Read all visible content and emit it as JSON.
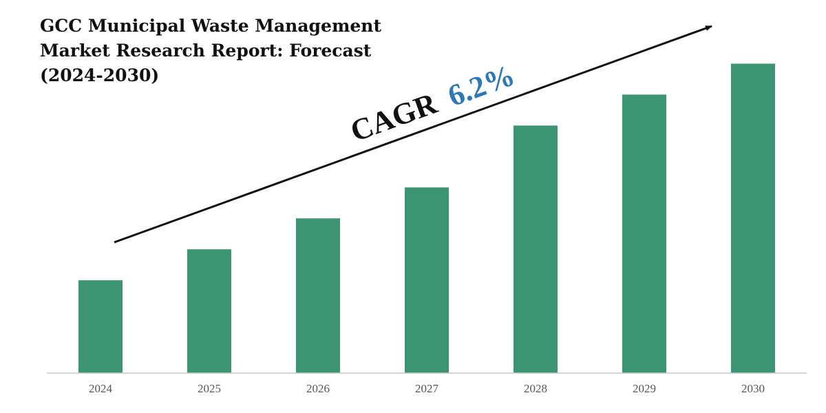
{
  "title_lines": [
    "GCC Municipal Waste Management",
    "Market Research Report: Forecast",
    "(2024-2030)"
  ],
  "annotation": {
    "prefix": "CAGR",
    "value": "6.2%",
    "prefix_color": "#111111",
    "value_color": "#2E78B5"
  },
  "chart_data": {
    "type": "bar",
    "title": "GCC Municipal Waste Management Market Research Report: Forecast (2024-2030)",
    "categories": [
      "2024",
      "2025",
      "2026",
      "2027",
      "2028",
      "2029",
      "2030"
    ],
    "values": [
      30,
      40,
      50,
      60,
      80,
      90,
      100
    ],
    "ylim": [
      0,
      105
    ],
    "xlabel": "",
    "ylabel": "",
    "grid": false,
    "bar_color": "#3C9572",
    "axis_color": "#C8C8C8"
  }
}
